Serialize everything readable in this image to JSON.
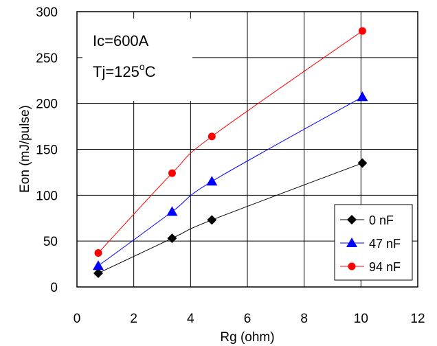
{
  "chart_data": {
    "type": "line",
    "title": "",
    "xlabel": "Rg (ohm)",
    "ylabel": "Eon (mJ/pulse)",
    "xlim": [
      0,
      12
    ],
    "ylim": [
      0,
      300
    ],
    "xticks": [
      0,
      2,
      4,
      6,
      8,
      10,
      12
    ],
    "yticks": [
      0,
      50,
      100,
      150,
      200,
      250,
      300
    ],
    "grid": true,
    "annotations": {
      "ic": "Ic=600A",
      "tj_prefix": "Tj=125",
      "tj_sup": "o",
      "tj_suffix": "C"
    },
    "legend_position": "bottom-right",
    "series": [
      {
        "name": "0 nF",
        "color": "#000000",
        "marker": "diamond",
        "points": [
          [
            0.75,
            15
          ],
          [
            3.35,
            53
          ],
          [
            4.75,
            73
          ],
          [
            10.05,
            135
          ]
        ]
      },
      {
        "name": "47 nF",
        "color": "#0000ff",
        "marker": "triangle",
        "points": [
          [
            0.75,
            23
          ],
          [
            3.35,
            82
          ],
          [
            4.75,
            115
          ],
          [
            10.05,
            207
          ]
        ]
      },
      {
        "name": "94 nF",
        "color": "#ff0000",
        "marker": "circle",
        "points": [
          [
            0.75,
            37
          ],
          [
            3.35,
            124
          ],
          [
            4.75,
            164
          ],
          [
            10.05,
            279
          ]
        ]
      }
    ]
  }
}
